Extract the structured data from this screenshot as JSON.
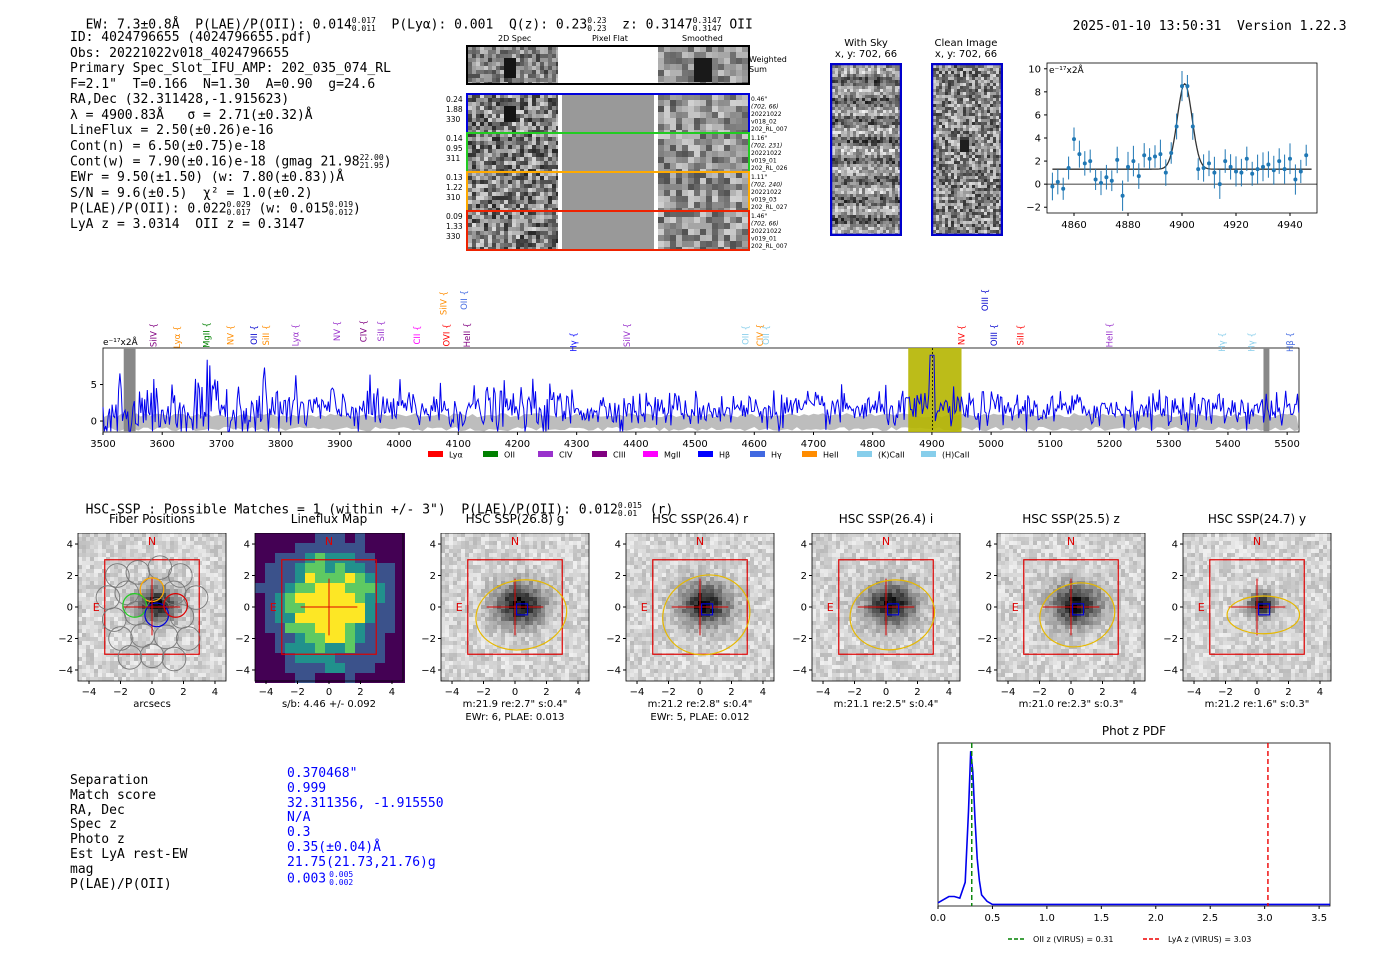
{
  "header": {
    "ew": "EW: 7.3±0.8Å",
    "plae_label": "P(LAE)/P(OII): 0.014",
    "plae_sup": "0.017",
    "plae_sub": "0.011",
    "plya": "P(Lyα): 0.001",
    "qz_label": "Q(z): 0.23",
    "qz_sup": "0.23",
    "qz_sub": "0.23",
    "z_label": "z: 0.3147",
    "z_sup": "0.3147",
    "z_sub": "0.3147",
    "z_line": "OII",
    "datetime": "2025-01-10 13:50:31",
    "version": "Version 1.22.3"
  },
  "info": {
    "id": "ID: 4024796655 (4024796655.pdf)",
    "obs": "Obs: 20221022v018_4024796655",
    "primary": "Primary Spec_Slot_IFU_AMP: 202_035_074_RL",
    "fit": "F=2.1\"  T=0.166  N=1.30  A=0.90  g=24.6",
    "radec": "RA,Dec (32.311428,-1.915623)",
    "lambda": "λ = 4900.83Å   σ = 2.71(±0.32)Å",
    "lineflux": "LineFlux = 2.50(±0.26)e-16",
    "contn": "Cont(n) = 6.50(±0.75)e-18",
    "contw_label": "Cont(w) = 7.90(±0.16)e-18 (gmag 21.98",
    "contw_sup": "22.00",
    "contw_sub": "21.95",
    "contw_end": ")",
    "ewr": "EWr = 9.50(±1.50) (w: 7.80(±0.83))Å",
    "sn": "S/N = 9.6(±0.5)  χ² = 1.0(±0.2)",
    "plae2_label": "P(LAE)/P(OII): 0.022",
    "plae2_sup": "0.029",
    "plae2_sub": "0.017",
    "plae2_mid": " (w: 0.015",
    "plae2_w_sup": "0.019",
    "plae2_w_sub": "0.012",
    "plae2_end": ")",
    "lya": "LyA z = 3.0314  OII z = 0.3147"
  },
  "cutouts": {
    "col_headers": [
      "2D Spec",
      "Pixel Flat",
      "Smoothed"
    ],
    "weighted_sum": [
      "Weighted",
      "Sum"
    ],
    "rows": [
      {
        "left": [
          "0.24",
          "1.88",
          "330"
        ],
        "right": [
          "0.46\"",
          "(702, 66)",
          "20221022",
          "v018_02",
          "202_RL_007"
        ],
        "color": "#0000dd"
      },
      {
        "left": [
          "0.14",
          "0.95",
          "311"
        ],
        "right": [
          "1.16\"",
          "(702, 231)",
          "20221022",
          "v019_01",
          "202_RL_026"
        ],
        "color": "#22cc22"
      },
      {
        "left": [
          "0.13",
          "1.22",
          "310"
        ],
        "right": [
          "1.11\"",
          "(702, 240)",
          "20221022",
          "v019_03",
          "202_RL_027"
        ],
        "color": "#ffaa00"
      },
      {
        "left": [
          "0.09",
          "1.33",
          "330"
        ],
        "right": [
          "1.46\"",
          "(702, 66)",
          "20221022",
          "v019_01",
          "202_RL_007"
        ],
        "color": "#ee2200"
      }
    ]
  },
  "with_sky": {
    "title": "With Sky",
    "coords": "x, y: 702, 66"
  },
  "clean_image": {
    "title": "Clean Image",
    "coords": "x, y: 702, 66"
  },
  "zoom_chart": {
    "ylabel": "e⁻¹⁷x2Å",
    "x_ticks": [
      "4860",
      "4880",
      "4900",
      "4920",
      "4940"
    ],
    "y_ticks": [
      "10",
      "8",
      "6",
      "4",
      "2",
      "0",
      "−2"
    ]
  },
  "spectrum": {
    "ylabel": "e⁻¹⁷x2Å",
    "x_ticks": [
      "3500",
      "3600",
      "3700",
      "3800",
      "3900",
      "4000",
      "4100",
      "4200",
      "4300",
      "4400",
      "4500",
      "4600",
      "4700",
      "4800",
      "4900",
      "5000",
      "5100",
      "5200",
      "5300",
      "5400",
      "5500"
    ],
    "y_ticks": [
      "5",
      "0"
    ],
    "line_labels": [
      {
        "text": "SiIV",
        "color": "#800080"
      },
      {
        "text": "Lyα",
        "color": "#ff8c00"
      },
      {
        "text": "MgII",
        "color": "#008000"
      },
      {
        "text": "NV",
        "color": "#ff8c00"
      },
      {
        "text": "OII",
        "color": "#0000cd"
      },
      {
        "text": "SiII",
        "color": "#ff8c00"
      },
      {
        "text": "Lyα",
        "color": "#9932cc"
      },
      {
        "text": "NV",
        "color": "#9932cc"
      },
      {
        "text": "CIV",
        "color": "#800080"
      },
      {
        "text": "SiII",
        "color": "#9932cc"
      },
      {
        "text": "CII",
        "color": "#ff00ff"
      },
      {
        "text": "SiIV",
        "color": "#ff8c00"
      },
      {
        "text": "OVI",
        "color": "#ff0000"
      },
      {
        "text": "OII",
        "color": "#4169e1"
      },
      {
        "text": "HeII",
        "color": "#800080"
      },
      {
        "text": "Hγ",
        "color": "#0000ff"
      },
      {
        "text": "SiIV",
        "color": "#9932cc"
      },
      {
        "text": "OII",
        "color": "#87ceeb"
      },
      {
        "text": "CIV",
        "color": "#ff8c00"
      },
      {
        "text": "OII",
        "color": "#87ceeb"
      },
      {
        "text": "OIII",
        "color": "#0000cd"
      },
      {
        "text": "NV",
        "color": "#ff0000"
      },
      {
        "text": "OIII",
        "color": "#0000cd"
      },
      {
        "text": "SiII",
        "color": "#ff0000"
      },
      {
        "text": "HeII",
        "color": "#9932cc"
      },
      {
        "text": "Hγ",
        "color": "#87ceeb"
      },
      {
        "text": "Hγ",
        "color": "#87ceeb"
      },
      {
        "text": "Hβ",
        "color": "#4169e1"
      }
    ],
    "legend": [
      {
        "label": "Lyα",
        "color": "#ff0000"
      },
      {
        "label": "OII",
        "color": "#008000"
      },
      {
        "label": "CIV",
        "color": "#9932cc"
      },
      {
        "label": "CIII",
        "color": "#800080"
      },
      {
        "label": "MgII",
        "color": "#ff00ff"
      },
      {
        "label": "Hβ",
        "color": "#0000ff"
      },
      {
        "label": "Hγ",
        "color": "#4169e1"
      },
      {
        "label": "HeII",
        "color": "#ff8c00"
      },
      {
        "label": "(K)CaII",
        "color": "#87ceeb"
      },
      {
        "label": "(H)CaII",
        "color": "#87ceeb"
      }
    ]
  },
  "hsc": {
    "header_label": "HSC-SSP : Possible Matches = 1 (within +/- 3\")  P(LAE)/P(OII): 0.012",
    "header_sup": "0.015",
    "header_sub": "0.01",
    "header_end": " (r)",
    "panels": [
      {
        "title": "Fiber Positions",
        "captions": [
          "arcsecs"
        ]
      },
      {
        "title": "Lineflux Map",
        "captions": [
          "s/b: 4.46 +/- 0.092"
        ]
      },
      {
        "title": "HSC SSP(26.8) g",
        "captions": [
          "m:21.9  re:2.7\"  s:0.4\"",
          "EWr: 6, PLAE: 0.013"
        ]
      },
      {
        "title": "HSC SSP(26.4) r",
        "captions": [
          "m:21.2  re:2.8\"  s:0.4\"",
          "EWr: 5, PLAE: 0.012"
        ]
      },
      {
        "title": "HSC SSP(26.4) i",
        "captions": [
          "m:21.1  re:2.5\"  s:0.4\""
        ]
      },
      {
        "title": "HSC SSP(25.5) z",
        "captions": [
          "m:21.0  re:2.3\"  s:0.3\""
        ]
      },
      {
        "title": "HSC SSP(24.7) y",
        "captions": [
          "m:21.2  re:1.6\"  s:0.3\""
        ]
      }
    ],
    "axis_ticks": [
      "4",
      "2",
      "0",
      "−2",
      "−4"
    ],
    "north": "N",
    "east": "E"
  },
  "match": {
    "labels": [
      "Separation",
      "Match score",
      "RA, Dec",
      "Spec z",
      "Photo z",
      "Est LyA rest-EW",
      "mag",
      "P(LAE)/P(OII)"
    ],
    "values": [
      "0.370468\"",
      "0.999",
      "32.311356, -1.915550",
      "N/A",
      "0.3",
      "0.35(±0.04)Å",
      "21.75(21.73,21.76)g",
      "0.003"
    ],
    "plae_sup": "0.005",
    "plae_sub": "0.002"
  },
  "photz": {
    "title": "Phot z PDF",
    "x_ticks": [
      "0.0",
      "0.5",
      "1.0",
      "1.5",
      "2.0",
      "2.5",
      "3.0",
      "3.5"
    ],
    "legend_oii": "OII z (VIRUS) = 0.31",
    "legend_lya": "LyA z (VIRUS) = 3.03"
  },
  "chart_data": [
    {
      "type": "scatter",
      "title": "",
      "xlabel": "",
      "ylabel": "e-17x2Å",
      "xlim": [
        4850,
        4950
      ],
      "ylim": [
        -2.5,
        10.5
      ],
      "x": [
        4852,
        4854,
        4856,
        4858,
        4860,
        4862,
        4864,
        4866,
        4868,
        4870,
        4872,
        4874,
        4876,
        4878,
        4880,
        4882,
        4884,
        4886,
        4888,
        4890,
        4892,
        4894,
        4896,
        4898,
        4900,
        4902,
        4904,
        4906,
        4908,
        4910,
        4912,
        4914,
        4916,
        4918,
        4920,
        4922,
        4924,
        4926,
        4928,
        4930,
        4932,
        4934,
        4936,
        4938,
        4940,
        4942,
        4944,
        4946
      ],
      "y": [
        -0.2,
        0.2,
        -0.4,
        1.4,
        3.9,
        2.6,
        1.8,
        2.0,
        0.4,
        0.1,
        0.6,
        0.3,
        2.1,
        -1.0,
        1.5,
        2.0,
        0.7,
        2.5,
        2.2,
        2.4,
        2.6,
        1.0,
        2.7,
        5.0,
        8.5,
        8.5,
        5.0,
        1.3,
        1.4,
        1.8,
        1.0,
        0.0,
        2.0,
        1.5,
        1.1,
        1.0,
        2.2,
        0.9,
        1.3,
        1.5,
        1.7,
        1.2,
        2.0,
        1.3,
        2.2,
        0.4,
        1.1,
        2.5
      ],
      "fit_peak": 8.7,
      "fit_center": 4901,
      "fit_sigma": 2.7,
      "fit_continuum": 1.3
    },
    {
      "type": "line",
      "title": "",
      "xlabel": "",
      "ylabel": "e-17x2Å",
      "xlim": [
        3500,
        5520
      ],
      "ylim": [
        -1.5,
        10
      ],
      "highlight_x": [
        4860,
        4950
      ],
      "peak_x": 4900.8,
      "series": [
        {
          "name": "spectrum",
          "description": "noisy continuum ~1-3 with emission peak at 4901"
        }
      ]
    },
    {
      "type": "line",
      "title": "Phot z PDF",
      "xlabel": "",
      "ylabel": "",
      "xlim": [
        0,
        3.6
      ],
      "x": [
        0.0,
        0.05,
        0.1,
        0.15,
        0.2,
        0.25,
        0.28,
        0.3,
        0.32,
        0.34,
        0.36,
        0.38,
        0.4,
        0.45,
        0.5,
        0.6,
        1.0,
        2.0,
        3.0,
        3.6
      ],
      "y": [
        0.02,
        0.04,
        0.06,
        0.06,
        0.05,
        0.15,
        0.6,
        0.98,
        0.85,
        0.55,
        0.3,
        0.16,
        0.07,
        0.03,
        0.01,
        0.01,
        0.01,
        0.01,
        0.01,
        0.01
      ],
      "vlines": [
        {
          "x": 0.31,
          "label": "OII z (VIRUS) = 0.31",
          "color": "#008000"
        },
        {
          "x": 3.03,
          "label": "LyA z (VIRUS) = 3.03",
          "color": "#ff0000"
        }
      ]
    }
  ]
}
